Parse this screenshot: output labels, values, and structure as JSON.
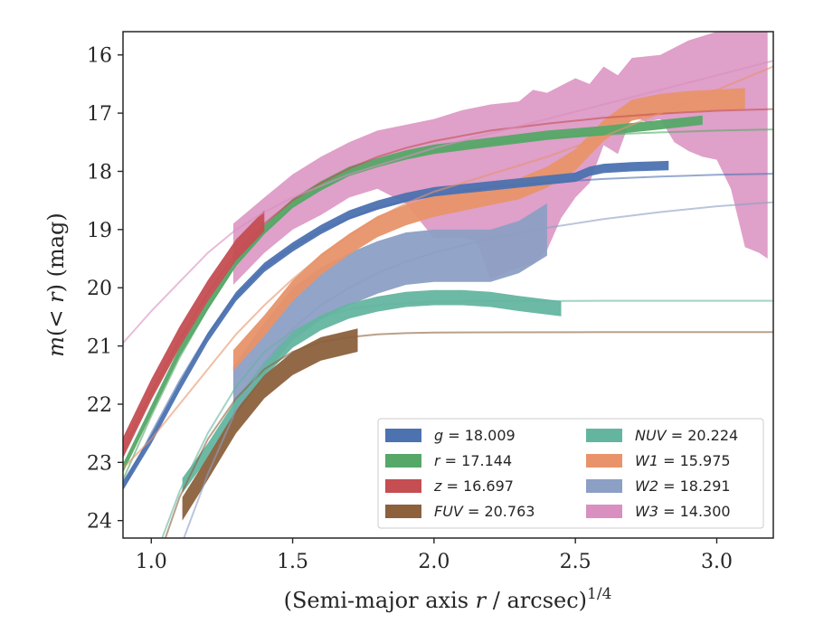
{
  "chart_data": {
    "type": "line",
    "xlabel": "(Semi-major axis r / arcsec)",
    "xlabel_var": "r",
    "xlabel_pre": "(Semi-major axis ",
    "xlabel_post": " / arcsec)",
    "xlabel_sup": "1/4",
    "ylabel_pre": "m(<r) (mag)",
    "ylabel_m": "m",
    "ylabel_open": "(< ",
    "ylabel_r": "r",
    "ylabel_close": ") (mag)",
    "xlim": [
      0.9,
      3.2
    ],
    "ylim": [
      24.3,
      15.6
    ],
    "y_inverted": true,
    "xticks": [
      "1.0",
      "1.5",
      "2.0",
      "2.5",
      "3.0"
    ],
    "yticks": [
      "16",
      "17",
      "18",
      "19",
      "20",
      "21",
      "22",
      "23",
      "24"
    ],
    "grid": false,
    "legend_position": "lower-right",
    "legend_columns": 2,
    "series": [
      {
        "name": "g",
        "label_var": "g",
        "label_val": " = 18.009",
        "color": "#4c72b0",
        "fit": [
          [
            0.9,
            23.45
          ],
          [
            1.0,
            22.5
          ],
          [
            1.1,
            21.6
          ],
          [
            1.2,
            20.8
          ],
          [
            1.3,
            20.15
          ],
          [
            1.4,
            19.65
          ],
          [
            1.5,
            19.3
          ],
          [
            1.6,
            19.02
          ],
          [
            1.7,
            18.8
          ],
          [
            1.8,
            18.63
          ],
          [
            1.9,
            18.5
          ],
          [
            2.0,
            18.4
          ],
          [
            2.2,
            18.27
          ],
          [
            2.4,
            18.19
          ],
          [
            2.6,
            18.13
          ],
          [
            2.8,
            18.09
          ],
          [
            3.0,
            18.06
          ],
          [
            3.2,
            18.04
          ]
        ],
        "band_center": [
          [
            0.9,
            23.4
          ],
          [
            1.0,
            22.6
          ],
          [
            1.1,
            21.7
          ],
          [
            1.2,
            20.85
          ],
          [
            1.3,
            20.15
          ],
          [
            1.4,
            19.65
          ],
          [
            1.5,
            19.3
          ],
          [
            1.6,
            19.0
          ],
          [
            1.7,
            18.75
          ],
          [
            1.8,
            18.58
          ],
          [
            1.9,
            18.45
          ],
          [
            2.0,
            18.35
          ],
          [
            2.2,
            18.25
          ],
          [
            2.4,
            18.15
          ],
          [
            2.5,
            18.1
          ],
          [
            2.55,
            18.0
          ],
          [
            2.6,
            17.95
          ],
          [
            2.7,
            17.92
          ],
          [
            2.83,
            17.9
          ]
        ],
        "band_width": 0.08
      },
      {
        "name": "r",
        "label_var": "r",
        "label_val": " = 17.144",
        "color": "#55a868",
        "fit": [
          [
            0.9,
            23.3
          ],
          [
            1.0,
            22.2
          ],
          [
            1.1,
            21.2
          ],
          [
            1.2,
            20.35
          ],
          [
            1.3,
            19.6
          ],
          [
            1.4,
            19.05
          ],
          [
            1.5,
            18.6
          ],
          [
            1.6,
            18.3
          ],
          [
            1.7,
            18.05
          ],
          [
            1.8,
            17.88
          ],
          [
            1.9,
            17.75
          ],
          [
            2.0,
            17.66
          ],
          [
            2.2,
            17.52
          ],
          [
            2.4,
            17.43
          ],
          [
            2.6,
            17.37
          ],
          [
            2.8,
            17.33
          ],
          [
            3.0,
            17.3
          ],
          [
            3.2,
            17.28
          ]
        ],
        "band_center": [
          [
            0.9,
            23.1
          ],
          [
            1.0,
            22.1
          ],
          [
            1.1,
            21.1
          ],
          [
            1.2,
            20.3
          ],
          [
            1.3,
            19.55
          ],
          [
            1.4,
            19.0
          ],
          [
            1.5,
            18.55
          ],
          [
            1.6,
            18.25
          ],
          [
            1.7,
            18.0
          ],
          [
            1.8,
            17.85
          ],
          [
            1.9,
            17.72
          ],
          [
            2.0,
            17.62
          ],
          [
            2.2,
            17.5
          ],
          [
            2.4,
            17.38
          ],
          [
            2.6,
            17.3
          ],
          [
            2.8,
            17.2
          ],
          [
            2.95,
            17.12
          ]
        ],
        "band_width": 0.08
      },
      {
        "name": "z",
        "label_var": "z",
        "label_val": " = 16.697",
        "color": "#c44e52",
        "fit": [
          [
            0.9,
            22.8
          ],
          [
            1.0,
            21.8
          ],
          [
            1.1,
            20.9
          ],
          [
            1.2,
            20.1
          ],
          [
            1.3,
            19.4
          ],
          [
            1.4,
            18.9
          ],
          [
            1.5,
            18.5
          ],
          [
            1.6,
            18.2
          ],
          [
            1.7,
            17.95
          ],
          [
            1.8,
            17.75
          ],
          [
            1.9,
            17.6
          ],
          [
            2.0,
            17.48
          ],
          [
            2.2,
            17.3
          ],
          [
            2.4,
            17.18
          ],
          [
            2.6,
            17.08
          ],
          [
            2.8,
            17.01
          ],
          [
            3.0,
            16.96
          ],
          [
            3.2,
            16.93
          ]
        ],
        "band_center": [
          [
            0.9,
            22.75
          ],
          [
            1.0,
            21.75
          ],
          [
            1.1,
            20.85
          ],
          [
            1.2,
            20.05
          ],
          [
            1.3,
            19.35
          ],
          [
            1.4,
            18.85
          ]
        ],
        "band_width": 0.18
      },
      {
        "name": "FUV",
        "label_var": "FUV",
        "label_val": " = 20.763",
        "color": "#8c613c",
        "fit": [
          [
            1.0,
            25.0
          ],
          [
            1.1,
            23.6
          ],
          [
            1.2,
            22.6
          ],
          [
            1.3,
            21.9
          ],
          [
            1.4,
            21.4
          ],
          [
            1.5,
            21.1
          ],
          [
            1.6,
            20.93
          ],
          [
            1.7,
            20.85
          ],
          [
            1.8,
            20.8
          ],
          [
            1.9,
            20.78
          ],
          [
            2.0,
            20.77
          ],
          [
            2.2,
            20.765
          ],
          [
            2.6,
            20.763
          ],
          [
            3.2,
            20.763
          ]
        ],
        "band_center": [
          [
            1.11,
            23.8
          ],
          [
            1.2,
            23.1
          ],
          [
            1.3,
            22.3
          ],
          [
            1.4,
            21.7
          ],
          [
            1.5,
            21.3
          ],
          [
            1.6,
            21.05
          ],
          [
            1.73,
            20.9
          ]
        ],
        "band_width": 0.2
      },
      {
        "name": "NUV",
        "label_var": "NUV",
        "label_val": " = 20.224",
        "color": "#64b5a0",
        "fit": [
          [
            1.0,
            24.8
          ],
          [
            1.1,
            23.5
          ],
          [
            1.2,
            22.5
          ],
          [
            1.3,
            21.7
          ],
          [
            1.4,
            21.1
          ],
          [
            1.5,
            20.75
          ],
          [
            1.6,
            20.5
          ],
          [
            1.7,
            20.37
          ],
          [
            1.8,
            20.3
          ],
          [
            1.9,
            20.26
          ],
          [
            2.0,
            20.24
          ],
          [
            2.2,
            20.23
          ],
          [
            2.6,
            20.224
          ],
          [
            3.2,
            20.224
          ]
        ],
        "band_center": [
          [
            1.11,
            23.4
          ],
          [
            1.2,
            22.8
          ],
          [
            1.3,
            22.05
          ],
          [
            1.4,
            21.4
          ],
          [
            1.5,
            20.9
          ],
          [
            1.6,
            20.6
          ],
          [
            1.7,
            20.4
          ],
          [
            1.8,
            20.28
          ],
          [
            1.9,
            20.2
          ],
          [
            2.0,
            20.17
          ],
          [
            2.1,
            20.17
          ],
          [
            2.2,
            20.2
          ],
          [
            2.3,
            20.27
          ],
          [
            2.45,
            20.36
          ]
        ],
        "band_width": 0.13
      },
      {
        "name": "W1",
        "label_var": "W1",
        "label_val": " = 15.975",
        "color": "#e8936a",
        "fit": [
          [
            0.9,
            23.1
          ],
          [
            1.0,
            22.6
          ],
          [
            1.1,
            22.0
          ],
          [
            1.2,
            21.4
          ],
          [
            1.3,
            20.8
          ],
          [
            1.4,
            20.3
          ],
          [
            1.5,
            19.85
          ],
          [
            1.6,
            19.45
          ],
          [
            1.7,
            19.1
          ],
          [
            1.8,
            18.8
          ],
          [
            1.9,
            18.55
          ],
          [
            2.0,
            18.35
          ],
          [
            2.2,
            18.05
          ],
          [
            2.4,
            17.75
          ],
          [
            2.6,
            17.4
          ],
          [
            2.8,
            17.0
          ],
          [
            3.0,
            16.6
          ],
          [
            3.2,
            16.2
          ]
        ],
        "band_center": [
          [
            1.29,
            21.25
          ],
          [
            1.4,
            20.65
          ],
          [
            1.5,
            20.05
          ],
          [
            1.6,
            19.6
          ],
          [
            1.7,
            19.25
          ],
          [
            1.8,
            18.95
          ],
          [
            1.9,
            18.75
          ],
          [
            2.0,
            18.6
          ],
          [
            2.1,
            18.5
          ],
          [
            2.2,
            18.4
          ],
          [
            2.3,
            18.3
          ],
          [
            2.4,
            18.1
          ],
          [
            2.5,
            17.8
          ],
          [
            2.6,
            17.3
          ],
          [
            2.7,
            16.95
          ],
          [
            2.8,
            16.85
          ],
          [
            2.9,
            16.8
          ],
          [
            3.1,
            16.75
          ]
        ],
        "band_width": 0.18
      },
      {
        "name": "W2",
        "label_var": "W2",
        "label_val": " = 18.291",
        "color": "#8c9fc4",
        "fit": [
          [
            1.1,
            24.5
          ],
          [
            1.2,
            23.2
          ],
          [
            1.3,
            22.1
          ],
          [
            1.4,
            21.3
          ],
          [
            1.5,
            20.7
          ],
          [
            1.6,
            20.3
          ],
          [
            1.7,
            20.0
          ],
          [
            1.8,
            19.75
          ],
          [
            1.9,
            19.55
          ],
          [
            2.0,
            19.4
          ],
          [
            2.2,
            19.15
          ],
          [
            2.4,
            18.97
          ],
          [
            2.6,
            18.82
          ],
          [
            2.8,
            18.7
          ],
          [
            3.0,
            18.6
          ],
          [
            3.2,
            18.53
          ]
        ],
        "band_center": [
          [
            1.29,
            21.8
          ],
          [
            1.4,
            21.05
          ],
          [
            1.5,
            20.45
          ],
          [
            1.6,
            20.1
          ],
          [
            1.7,
            19.85
          ],
          [
            1.8,
            19.65
          ],
          [
            1.9,
            19.5
          ],
          [
            2.0,
            19.45
          ],
          [
            2.1,
            19.45
          ],
          [
            2.2,
            19.45
          ],
          [
            2.3,
            19.3
          ],
          [
            2.4,
            19.0
          ]
        ],
        "band_width": 0.45
      },
      {
        "name": "W3",
        "label_var": "W3",
        "label_val": " = 14.300",
        "color": "#d98fc0",
        "fit": [
          [
            0.9,
            20.95
          ],
          [
            1.0,
            20.4
          ],
          [
            1.1,
            19.9
          ],
          [
            1.2,
            19.4
          ],
          [
            1.3,
            19.0
          ],
          [
            1.4,
            18.7
          ],
          [
            1.5,
            18.45
          ],
          [
            1.6,
            18.25
          ],
          [
            1.7,
            18.05
          ],
          [
            1.8,
            17.9
          ],
          [
            1.9,
            17.75
          ],
          [
            2.0,
            17.6
          ],
          [
            2.2,
            17.35
          ],
          [
            2.4,
            17.1
          ],
          [
            2.6,
            16.85
          ],
          [
            2.8,
            16.6
          ],
          [
            3.0,
            16.35
          ],
          [
            3.2,
            16.1
          ]
        ],
        "band_upper": [
          [
            1.29,
            18.9
          ],
          [
            1.4,
            18.45
          ],
          [
            1.5,
            18.05
          ],
          [
            1.6,
            17.75
          ],
          [
            1.7,
            17.5
          ],
          [
            1.8,
            17.3
          ],
          [
            1.9,
            17.2
          ],
          [
            2.0,
            17.1
          ],
          [
            2.1,
            16.95
          ],
          [
            2.2,
            16.85
          ],
          [
            2.3,
            16.8
          ],
          [
            2.35,
            16.6
          ],
          [
            2.4,
            16.65
          ],
          [
            2.5,
            16.4
          ],
          [
            2.55,
            16.5
          ],
          [
            2.6,
            16.2
          ],
          [
            2.65,
            16.35
          ],
          [
            2.7,
            16.05
          ],
          [
            2.8,
            16.0
          ],
          [
            2.9,
            15.75
          ],
          [
            3.0,
            15.6
          ],
          [
            3.18,
            15.6
          ]
        ],
        "band_lower": [
          [
            3.18,
            19.5
          ],
          [
            3.15,
            19.4
          ],
          [
            3.1,
            19.3
          ],
          [
            3.05,
            18.3
          ],
          [
            3.0,
            17.8
          ],
          [
            2.95,
            17.75
          ],
          [
            2.9,
            17.65
          ],
          [
            2.85,
            17.5
          ],
          [
            2.8,
            17.1
          ],
          [
            2.75,
            17.15
          ],
          [
            2.7,
            17.05
          ],
          [
            2.65,
            17.7
          ],
          [
            2.6,
            17.55
          ],
          [
            2.55,
            18.2
          ],
          [
            2.5,
            18.45
          ],
          [
            2.45,
            18.8
          ],
          [
            2.4,
            19.35
          ],
          [
            2.35,
            19.6
          ],
          [
            2.3,
            19.65
          ],
          [
            2.25,
            19.75
          ],
          [
            2.2,
            19.85
          ],
          [
            2.15,
            19.2
          ],
          [
            2.1,
            19.15
          ],
          [
            2.0,
            19.15
          ],
          [
            1.9,
            18.55
          ],
          [
            1.8,
            18.3
          ],
          [
            1.7,
            18.45
          ],
          [
            1.6,
            18.75
          ],
          [
            1.5,
            19.0
          ],
          [
            1.4,
            19.4
          ],
          [
            1.29,
            19.95
          ]
        ]
      }
    ]
  }
}
